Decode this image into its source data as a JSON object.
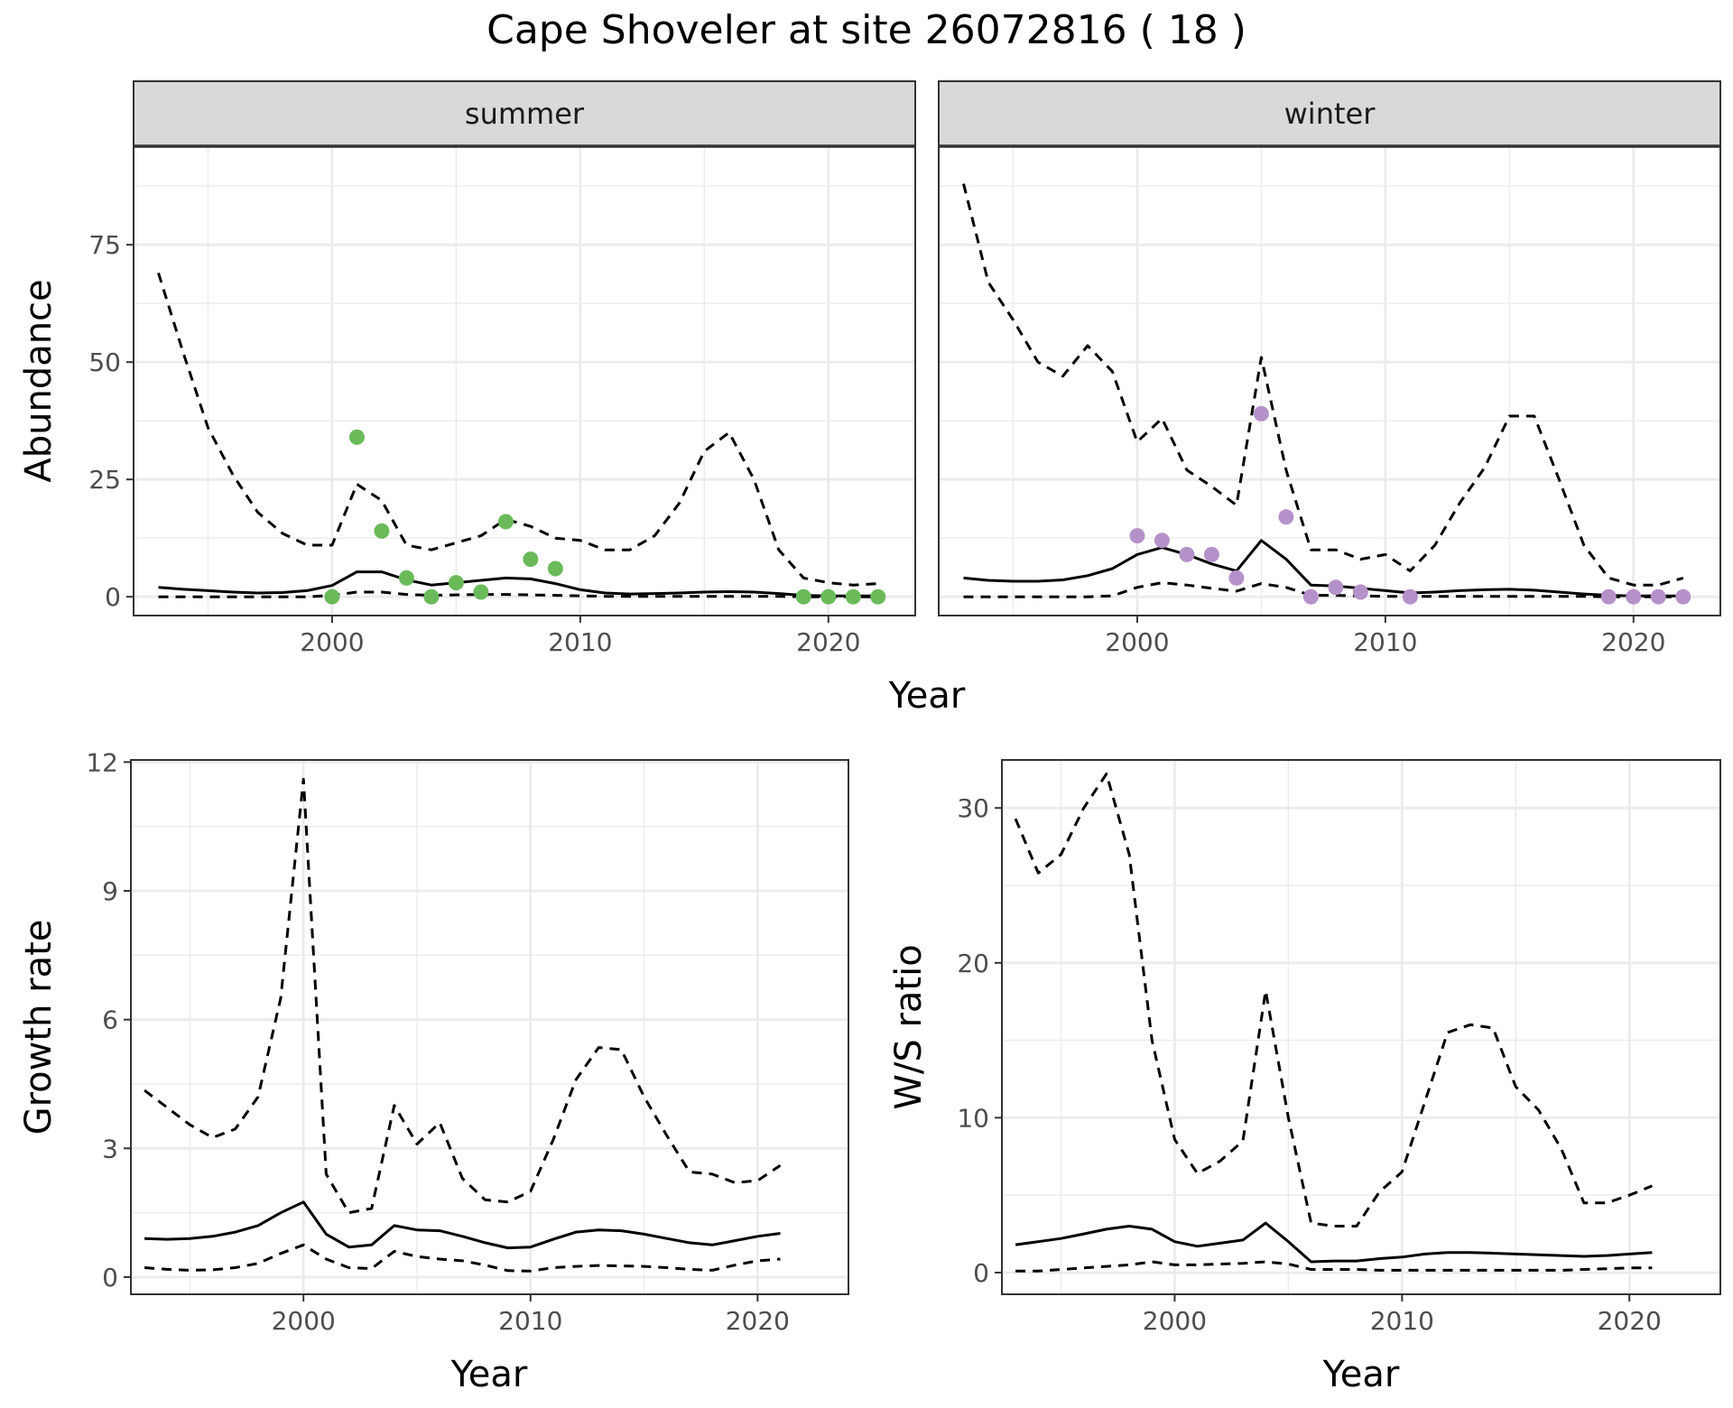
{
  "title": "Cape Shoveler at site 26072816 ( 18 )",
  "colors": {
    "summer_points": "#6aba5a",
    "winter_points": "#b591c9",
    "lines": "#000000",
    "strip_bg": "#d9d9d9",
    "grid": "#ebebeb"
  },
  "chart_data": [
    {
      "type": "line",
      "facet": "summer",
      "xlabel": "Year",
      "ylabel": "Abundance",
      "xlim": [
        1992,
        2023.5
      ],
      "ylim": [
        -4,
        96
      ],
      "xticks": [
        2000,
        2010,
        2020
      ],
      "yticks": [
        0,
        25,
        50,
        75
      ],
      "grid": true,
      "series": [
        {
          "style": "solid",
          "x": [
            1993,
            1994,
            1995,
            1996,
            1997,
            1998,
            1999,
            2000,
            2001,
            2002,
            2003,
            2004,
            2005,
            2006,
            2007,
            2008,
            2009,
            2010,
            2011,
            2012,
            2013,
            2014,
            2015,
            2016,
            2017,
            2018,
            2019,
            2020,
            2021,
            2022
          ],
          "values": [
            2,
            1.6,
            1.3,
            1,
            0.8,
            0.9,
            1.3,
            2.4,
            5.3,
            5.3,
            3.6,
            2.5,
            3,
            3.5,
            4,
            3.8,
            2.8,
            1.5,
            0.8,
            0.6,
            0.7,
            0.8,
            1,
            1.1,
            1,
            0.7,
            0.3,
            0.2,
            0.2,
            0.2
          ]
        },
        {
          "style": "dashed",
          "x": [
            1993,
            1994,
            1995,
            1996,
            1997,
            1998,
            1999,
            2000,
            2001,
            2002,
            2003,
            2004,
            2005,
            2006,
            2007,
            2008,
            2009,
            2010,
            2011,
            2012,
            2013,
            2014,
            2015,
            2016,
            2017,
            2018,
            2019,
            2020,
            2021,
            2022
          ],
          "values": [
            69,
            52,
            36,
            26,
            18,
            13.5,
            11,
            11,
            24,
            20.5,
            11,
            10,
            11.5,
            13,
            16.5,
            15,
            12.5,
            12,
            10,
            10,
            13,
            20,
            31,
            35,
            25,
            10,
            4,
            3,
            2.5,
            2.8
          ]
        },
        {
          "style": "dashed",
          "x": [
            1993,
            1994,
            1995,
            1996,
            1997,
            1998,
            1999,
            2000,
            2001,
            2002,
            2003,
            2004,
            2005,
            2006,
            2007,
            2008,
            2009,
            2010,
            2011,
            2012,
            2013,
            2014,
            2015,
            2016,
            2017,
            2018,
            2019,
            2020,
            2021,
            2022
          ],
          "values": [
            0,
            0,
            0,
            0,
            0,
            0,
            0,
            0.3,
            1,
            1,
            0.5,
            0.3,
            0.4,
            0.5,
            0.5,
            0.4,
            0.3,
            0.2,
            0.1,
            0.1,
            0.1,
            0.1,
            0.1,
            0.1,
            0.1,
            0.1,
            0,
            0,
            0,
            0
          ]
        },
        {
          "style": "points",
          "x": [
            2000,
            2001,
            2002,
            2003,
            2004,
            2005,
            2006,
            2007,
            2008,
            2009,
            2019,
            2020,
            2021,
            2022
          ],
          "values": [
            0,
            34,
            14,
            4,
            0,
            3,
            1,
            16,
            8,
            6,
            0,
            0,
            0,
            0
          ]
        }
      ]
    },
    {
      "type": "line",
      "facet": "winter",
      "xlabel": "Year",
      "ylabel": "Abundance",
      "xlim": [
        1992,
        2023.5
      ],
      "ylim": [
        -4,
        96
      ],
      "xticks": [
        2000,
        2010,
        2020
      ],
      "yticks": [
        0,
        25,
        50,
        75
      ],
      "grid": true,
      "series": [
        {
          "style": "solid",
          "x": [
            1993,
            1994,
            1995,
            1996,
            1997,
            1998,
            1999,
            2000,
            2001,
            2002,
            2003,
            2004,
            2005,
            2006,
            2007,
            2008,
            2009,
            2010,
            2011,
            2012,
            2013,
            2014,
            2015,
            2016,
            2017,
            2018,
            2019,
            2020,
            2021,
            2022
          ],
          "values": [
            4,
            3.5,
            3.3,
            3.3,
            3.6,
            4.5,
            6,
            9,
            10.5,
            9,
            7,
            5.5,
            12,
            8,
            2.5,
            2.3,
            1.8,
            1.3,
            0.8,
            1,
            1.3,
            1.5,
            1.6,
            1.4,
            1,
            0.6,
            0.3,
            0.2,
            0.2,
            0.2
          ]
        },
        {
          "style": "dashed",
          "x": [
            1993,
            1994,
            1995,
            1996,
            1997,
            1998,
            1999,
            2000,
            2001,
            2002,
            2003,
            2004,
            2005,
            2006,
            2007,
            2008,
            2009,
            2010,
            2011,
            2012,
            2013,
            2014,
            2015,
            2016,
            2017,
            2018,
            2019,
            2020,
            2021,
            2022
          ],
          "values": [
            88,
            67,
            59,
            50,
            47,
            53.5,
            48,
            33,
            38,
            27,
            23.5,
            19.5,
            51,
            27,
            10,
            10,
            8,
            9,
            5.5,
            11,
            20,
            27.5,
            38.5,
            38.5,
            25,
            11,
            4,
            2.5,
            2.5,
            4
          ]
        },
        {
          "style": "dashed",
          "x": [
            1993,
            1994,
            1995,
            1996,
            1997,
            1998,
            1999,
            2000,
            2001,
            2002,
            2003,
            2004,
            2005,
            2006,
            2007,
            2008,
            2009,
            2010,
            2011,
            2012,
            2013,
            2014,
            2015,
            2016,
            2017,
            2018,
            2019,
            2020,
            2021,
            2022
          ],
          "values": [
            0,
            0,
            0,
            0,
            0,
            0,
            0.2,
            2,
            3,
            2.5,
            1.8,
            1.2,
            2.8,
            2,
            0.3,
            0.3,
            0.2,
            0.1,
            0.1,
            0.1,
            0.1,
            0.1,
            0.1,
            0.1,
            0.1,
            0.1,
            0,
            0,
            0,
            0
          ]
        },
        {
          "style": "points",
          "x": [
            2000,
            2001,
            2002,
            2003,
            2004,
            2005,
            2006,
            2007,
            2008,
            2009,
            2011,
            2019,
            2020,
            2021,
            2022
          ],
          "values": [
            13,
            12,
            9,
            9,
            4,
            39,
            17,
            0,
            2,
            1,
            0,
            0,
            0,
            0,
            0
          ]
        }
      ]
    },
    {
      "type": "line",
      "xlabel": "Year",
      "ylabel": "Growth rate",
      "xlim": [
        1992.4,
        2024
      ],
      "ylim": [
        -0.4,
        12.05
      ],
      "xticks": [
        2000,
        2010,
        2020
      ],
      "yticks": [
        0,
        3,
        6,
        9,
        12
      ],
      "grid": true,
      "series": [
        {
          "style": "solid",
          "x": [
            1993,
            1994,
            1995,
            1996,
            1997,
            1998,
            1999,
            2000,
            2001,
            2002,
            2003,
            2004,
            2005,
            2006,
            2007,
            2008,
            2009,
            2010,
            2011,
            2012,
            2013,
            2014,
            2015,
            2016,
            2017,
            2018,
            2019,
            2020,
            2021
          ],
          "values": [
            0.9,
            0.88,
            0.9,
            0.95,
            1.05,
            1.2,
            1.5,
            1.75,
            1.0,
            0.7,
            0.75,
            1.2,
            1.1,
            1.08,
            0.95,
            0.8,
            0.68,
            0.7,
            0.88,
            1.05,
            1.1,
            1.08,
            1.0,
            0.9,
            0.8,
            0.75,
            0.85,
            0.95,
            1.02
          ]
        },
        {
          "style": "dashed",
          "x": [
            1993,
            1994,
            1995,
            1996,
            1997,
            1998,
            1999,
            2000,
            2001,
            2002,
            2003,
            2004,
            2005,
            2006,
            2007,
            2008,
            2009,
            2010,
            2011,
            2012,
            2013,
            2014,
            2015,
            2016,
            2017,
            2018,
            2019,
            2020,
            2021
          ],
          "values": [
            4.35,
            3.95,
            3.55,
            3.25,
            3.45,
            4.2,
            6.5,
            11.6,
            2.4,
            1.5,
            1.6,
            4.0,
            3.1,
            3.6,
            2.3,
            1.8,
            1.75,
            2.0,
            3.2,
            4.6,
            5.35,
            5.3,
            4.2,
            3.3,
            2.45,
            2.4,
            2.2,
            2.25,
            2.6
          ]
        },
        {
          "style": "dashed",
          "x": [
            1993,
            1994,
            1995,
            1996,
            1997,
            1998,
            1999,
            2000,
            2001,
            2002,
            2003,
            2004,
            2005,
            2006,
            2007,
            2008,
            2009,
            2010,
            2011,
            2012,
            2013,
            2014,
            2015,
            2016,
            2017,
            2018,
            2019,
            2020,
            2021
          ],
          "values": [
            0.22,
            0.18,
            0.16,
            0.17,
            0.22,
            0.32,
            0.55,
            0.75,
            0.42,
            0.22,
            0.2,
            0.6,
            0.48,
            0.42,
            0.38,
            0.28,
            0.15,
            0.14,
            0.22,
            0.25,
            0.27,
            0.26,
            0.25,
            0.22,
            0.18,
            0.16,
            0.28,
            0.38,
            0.42
          ]
        }
      ]
    },
    {
      "type": "line",
      "xlabel": "Year",
      "ylabel": "W/S ratio",
      "xlim": [
        1992.4,
        2024
      ],
      "ylim": [
        -1.4,
        33.1
      ],
      "xticks": [
        2000,
        2010,
        2020
      ],
      "yticks": [
        0,
        10,
        20,
        30
      ],
      "grid": true,
      "series": [
        {
          "style": "solid",
          "x": [
            1993,
            1994,
            1995,
            1996,
            1997,
            1998,
            1999,
            2000,
            2001,
            2002,
            2003,
            2004,
            2005,
            2006,
            2007,
            2008,
            2009,
            2010,
            2011,
            2012,
            2013,
            2014,
            2015,
            2016,
            2017,
            2018,
            2019,
            2020,
            2021
          ],
          "values": [
            1.8,
            2.0,
            2.2,
            2.5,
            2.8,
            3.0,
            2.8,
            2.0,
            1.7,
            1.9,
            2.1,
            3.2,
            2.0,
            0.7,
            0.75,
            0.75,
            0.9,
            1.0,
            1.2,
            1.3,
            1.3,
            1.25,
            1.2,
            1.15,
            1.1,
            1.05,
            1.1,
            1.2,
            1.3
          ]
        },
        {
          "style": "dashed",
          "x": [
            1993,
            1994,
            1995,
            1996,
            1997,
            1998,
            1999,
            2000,
            2001,
            2002,
            2003,
            2004,
            2005,
            2006,
            2007,
            2008,
            2009,
            2010,
            2011,
            2012,
            2013,
            2014,
            2015,
            2016,
            2017,
            2018,
            2019,
            2020,
            2021
          ],
          "values": [
            29.3,
            25.8,
            27,
            30,
            32.2,
            27,
            15,
            8.6,
            6.4,
            7.2,
            8.5,
            18.2,
            10,
            3.2,
            3,
            3,
            5.2,
            6.5,
            11,
            15.5,
            16,
            15.8,
            12,
            10.5,
            8,
            4.5,
            4.5,
            5,
            5.6
          ]
        },
        {
          "style": "dashed",
          "x": [
            1993,
            1994,
            1995,
            1996,
            1997,
            1998,
            1999,
            2000,
            2001,
            2002,
            2003,
            2004,
            2005,
            2006,
            2007,
            2008,
            2009,
            2010,
            2011,
            2012,
            2013,
            2014,
            2015,
            2016,
            2017,
            2018,
            2019,
            2020,
            2021
          ],
          "values": [
            0.1,
            0.1,
            0.2,
            0.3,
            0.4,
            0.5,
            0.7,
            0.5,
            0.5,
            0.55,
            0.6,
            0.7,
            0.55,
            0.2,
            0.2,
            0.2,
            0.15,
            0.15,
            0.15,
            0.15,
            0.15,
            0.15,
            0.15,
            0.15,
            0.15,
            0.2,
            0.25,
            0.3,
            0.3
          ]
        }
      ]
    }
  ]
}
